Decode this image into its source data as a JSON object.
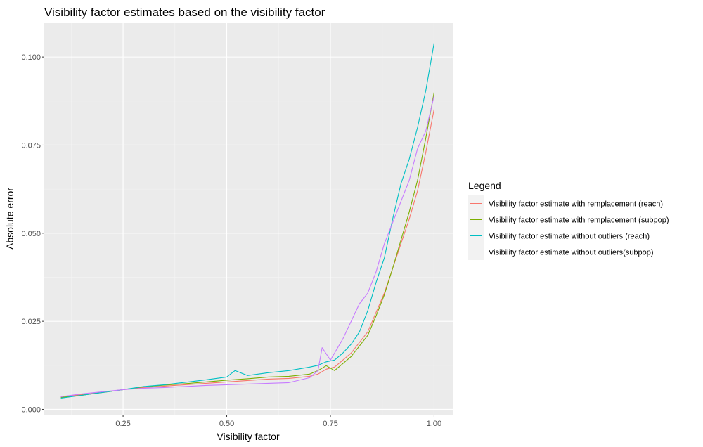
{
  "chart_data": {
    "type": "line",
    "title": "Visibility factor estimates based on the visibility factor",
    "xlabel": "Visibility factor",
    "ylabel": "Absolute error",
    "xlim": [
      0.06,
      1.045
    ],
    "ylim": [
      -0.0017,
      0.1096
    ],
    "x_ticks": [
      0.25,
      0.5,
      0.75,
      1.0
    ],
    "x_tick_labels": [
      "0.25",
      "0.50",
      "0.75",
      "1.00"
    ],
    "y_ticks": [
      0.0,
      0.025,
      0.05,
      0.075,
      0.1
    ],
    "y_tick_labels": [
      "0.000",
      "0.025",
      "0.050",
      "0.075",
      "0.100"
    ],
    "grid": true,
    "legend": {
      "title": "Legend",
      "position": "right",
      "entries": [
        "Visibility factor estimate with remplacement (reach)",
        "Visibility factor estimate with remplacement (subpop)",
        "Visibility factor estimate without outliers (reach)",
        "Visibility factor estimate without outliers(subpop)"
      ]
    },
    "series": [
      {
        "name": "Visibility factor estimate with remplacement (reach)",
        "color": "#F8766D",
        "points": [
          [
            0.1,
            0.0036
          ],
          [
            0.15,
            0.0042
          ],
          [
            0.2,
            0.0048
          ],
          [
            0.25,
            0.0056
          ],
          [
            0.3,
            0.0062
          ],
          [
            0.35,
            0.0066
          ],
          [
            0.4,
            0.007
          ],
          [
            0.45,
            0.0074
          ],
          [
            0.5,
            0.0078
          ],
          [
            0.55,
            0.0082
          ],
          [
            0.6,
            0.0086
          ],
          [
            0.65,
            0.0088
          ],
          [
            0.7,
            0.0094
          ],
          [
            0.72,
            0.01
          ],
          [
            0.74,
            0.0114
          ],
          [
            0.76,
            0.012
          ],
          [
            0.78,
            0.014
          ],
          [
            0.8,
            0.016
          ],
          [
            0.82,
            0.019
          ],
          [
            0.84,
            0.022
          ],
          [
            0.86,
            0.0275
          ],
          [
            0.88,
            0.033
          ],
          [
            0.9,
            0.04
          ],
          [
            0.92,
            0.047
          ],
          [
            0.94,
            0.054
          ],
          [
            0.96,
            0.062
          ],
          [
            0.98,
            0.073
          ],
          [
            1.0,
            0.0852
          ]
        ]
      },
      {
        "name": "Visibility factor estimate with remplacement (subpop)",
        "color": "#7CAE00",
        "points": [
          [
            0.1,
            0.0034
          ],
          [
            0.15,
            0.004
          ],
          [
            0.2,
            0.0048
          ],
          [
            0.25,
            0.0056
          ],
          [
            0.3,
            0.0064
          ],
          [
            0.35,
            0.0069
          ],
          [
            0.4,
            0.0073
          ],
          [
            0.45,
            0.0078
          ],
          [
            0.5,
            0.0083
          ],
          [
            0.55,
            0.0087
          ],
          [
            0.6,
            0.0092
          ],
          [
            0.65,
            0.0094
          ],
          [
            0.7,
            0.01
          ],
          [
            0.72,
            0.011
          ],
          [
            0.74,
            0.0124
          ],
          [
            0.76,
            0.011
          ],
          [
            0.78,
            0.013
          ],
          [
            0.8,
            0.015
          ],
          [
            0.82,
            0.018
          ],
          [
            0.84,
            0.021
          ],
          [
            0.86,
            0.0265
          ],
          [
            0.88,
            0.0325
          ],
          [
            0.9,
            0.04
          ],
          [
            0.92,
            0.048
          ],
          [
            0.94,
            0.056
          ],
          [
            0.96,
            0.065
          ],
          [
            0.98,
            0.077
          ],
          [
            1.0,
            0.09
          ]
        ]
      },
      {
        "name": "Visibility factor estimate without outliers (reach)",
        "color": "#00BFC4",
        "points": [
          [
            0.1,
            0.0032
          ],
          [
            0.15,
            0.004
          ],
          [
            0.2,
            0.0048
          ],
          [
            0.25,
            0.0056
          ],
          [
            0.3,
            0.0065
          ],
          [
            0.35,
            0.007
          ],
          [
            0.4,
            0.0077
          ],
          [
            0.45,
            0.0084
          ],
          [
            0.5,
            0.0092
          ],
          [
            0.52,
            0.011
          ],
          [
            0.55,
            0.0096
          ],
          [
            0.6,
            0.0104
          ],
          [
            0.65,
            0.011
          ],
          [
            0.7,
            0.012
          ],
          [
            0.72,
            0.0125
          ],
          [
            0.74,
            0.0135
          ],
          [
            0.76,
            0.014
          ],
          [
            0.78,
            0.016
          ],
          [
            0.8,
            0.0185
          ],
          [
            0.82,
            0.022
          ],
          [
            0.84,
            0.028
          ],
          [
            0.86,
            0.036
          ],
          [
            0.88,
            0.043
          ],
          [
            0.9,
            0.054
          ],
          [
            0.92,
            0.064
          ],
          [
            0.94,
            0.071
          ],
          [
            0.96,
            0.08
          ],
          [
            0.98,
            0.0905
          ],
          [
            1.0,
            0.104
          ]
        ]
      },
      {
        "name": "Visibility factor estimate without outliers(subpop)",
        "color": "#C77CFF",
        "points": [
          [
            0.1,
            0.0036
          ],
          [
            0.15,
            0.0044
          ],
          [
            0.2,
            0.005
          ],
          [
            0.25,
            0.0056
          ],
          [
            0.3,
            0.006
          ],
          [
            0.35,
            0.0062
          ],
          [
            0.4,
            0.0065
          ],
          [
            0.45,
            0.0068
          ],
          [
            0.5,
            0.007
          ],
          [
            0.55,
            0.0072
          ],
          [
            0.6,
            0.0074
          ],
          [
            0.65,
            0.0076
          ],
          [
            0.7,
            0.009
          ],
          [
            0.72,
            0.011
          ],
          [
            0.73,
            0.0175
          ],
          [
            0.75,
            0.014
          ],
          [
            0.78,
            0.02
          ],
          [
            0.8,
            0.025
          ],
          [
            0.82,
            0.03
          ],
          [
            0.84,
            0.033
          ],
          [
            0.86,
            0.039
          ],
          [
            0.88,
            0.047
          ],
          [
            0.9,
            0.053
          ],
          [
            0.92,
            0.059
          ],
          [
            0.94,
            0.065
          ],
          [
            0.96,
            0.074
          ],
          [
            0.98,
            0.079
          ],
          [
            1.0,
            0.089
          ]
        ]
      }
    ]
  }
}
